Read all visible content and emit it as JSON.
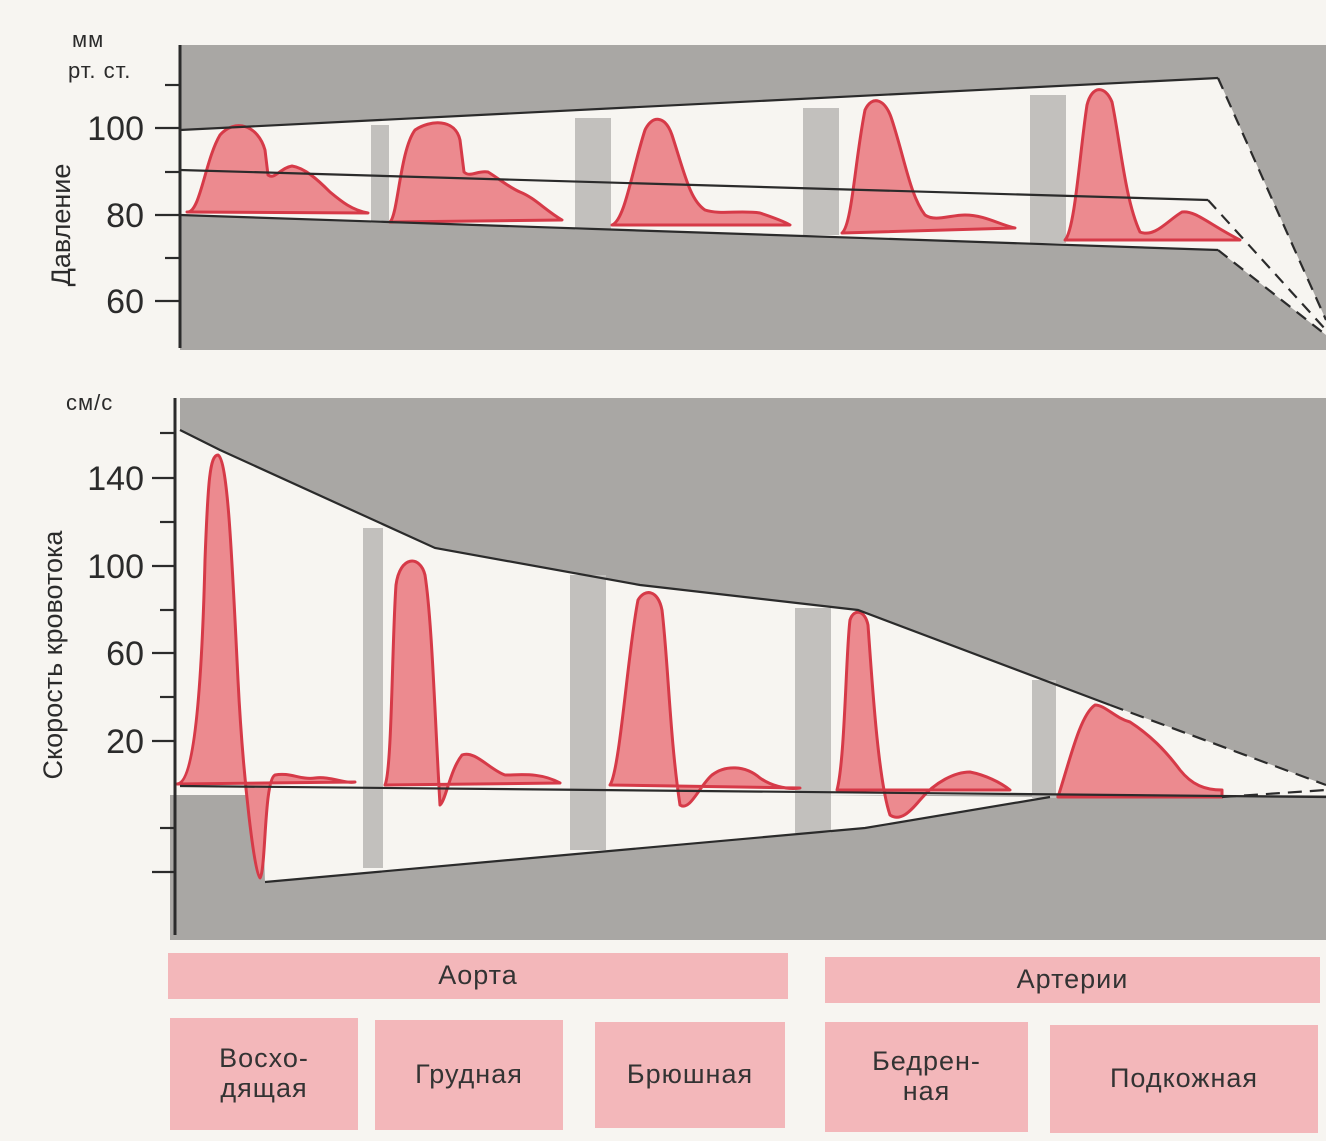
{
  "colors": {
    "page": "#f7f5f1",
    "band": "#a9a7a4",
    "strip": "#c2c0bd",
    "wave_fill": "#ec8a8f",
    "wave_stroke": "#d63a48",
    "label_bg": "#f3b7ba",
    "ink": "#2b2b2b"
  },
  "pressure_panel": {
    "unit_line1": "мм",
    "unit_line2": "рт. ст.",
    "axis_title": "Давление",
    "ticks": [
      "100",
      "80",
      "60"
    ]
  },
  "velocity_panel": {
    "unit": "см/с",
    "axis_title": "Скорость кровотока",
    "ticks": [
      "140",
      "100",
      "60",
      "20"
    ]
  },
  "groups": [
    {
      "label": "Аорта"
    },
    {
      "label": "Артерии"
    }
  ],
  "segments": [
    {
      "label": "Восхо-\nдящая"
    },
    {
      "label": "Грудная"
    },
    {
      "label": "Брюшная"
    },
    {
      "label": "Бедрен-\nная"
    },
    {
      "label": "Подкожная"
    }
  ]
}
